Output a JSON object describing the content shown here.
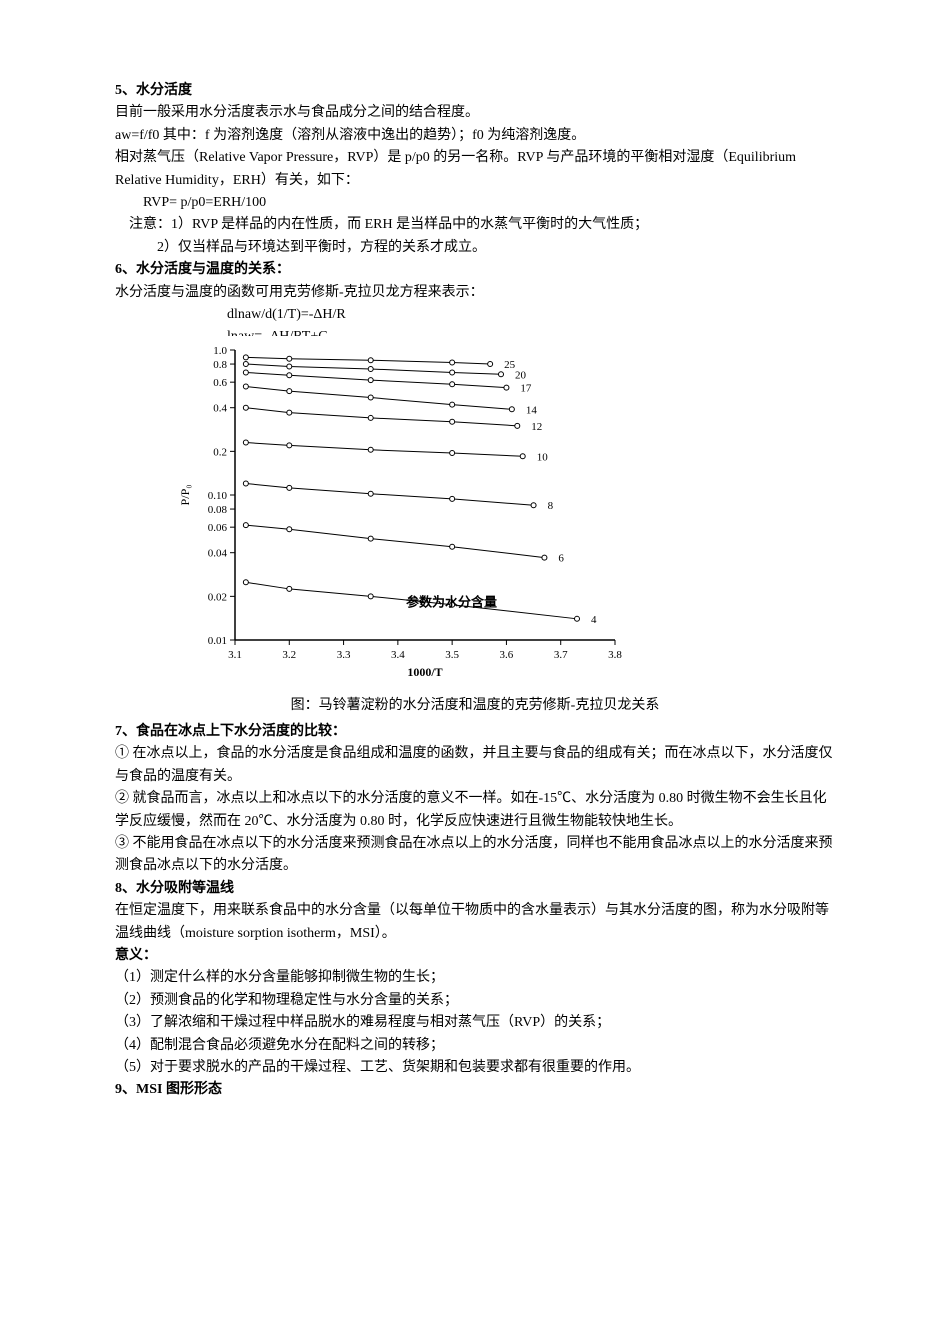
{
  "s5": {
    "heading": "5、水分活度",
    "p1": "目前一般采用水分活度表示水与食品成分之间的结合程度。",
    "p2": "aw=f/f0  其中：f 为溶剂逸度（溶剂从溶液中逸出的趋势）；f0 为纯溶剂逸度。",
    "p3": "相对蒸气压（Relative Vapor Pressure，RVP）是 p/p0 的另一名称。RVP 与产品环境的平衡相对湿度（Equilibrium Relative Humidity，ERH）有关，如下：",
    "p4": "RVP= p/p0=ERH/100",
    "p5": "注意：1）RVP 是样品的内在性质，而 ERH 是当样品中的水蒸气平衡时的大气性质；",
    "p6": "2）仅当样品与环境达到平衡时，方程的关系才成立。"
  },
  "s6": {
    "heading": "6、水分活度与温度的关系：",
    "p1": "水分活度与温度的函数可用克劳修斯-克拉贝龙方程来表示：",
    "eq1": "dlnaw/d(1/T)=-ΔH/R",
    "eq2": "lnaw= -ΔH/RT+C"
  },
  "chart": {
    "type": "line",
    "xlabel": "1000/T",
    "ylabel": "P/P₀",
    "ylabel_rotated": true,
    "annotation": "参数为水分含量",
    "xlim": [
      3.1,
      3.8
    ],
    "xticks": [
      3.1,
      3.2,
      3.3,
      3.4,
      3.5,
      3.6,
      3.7,
      3.8
    ],
    "yscale": "log",
    "yticks": [
      0.01,
      0.02,
      0.04,
      0.06,
      0.08,
      0.1,
      0.2,
      0.4,
      0.6,
      0.8,
      1.0
    ],
    "ytick_labels": [
      "0.01",
      "0.02",
      "0.04",
      "0.06",
      "0.08",
      "0.10",
      "0.2",
      "0.4",
      "0.6",
      "0.8",
      "1.0"
    ],
    "line_color": "#000000",
    "marker": "circle_open",
    "marker_size": 5,
    "background_color": "#ffffff",
    "axis_color": "#000000",
    "label_fontsize": 12,
    "tick_fontsize": 11,
    "series_labels": [
      "25",
      "20",
      "17",
      "14",
      "12",
      "10",
      "8",
      "6",
      "4"
    ],
    "series": [
      {
        "label": "25",
        "points": [
          [
            3.12,
            0.89
          ],
          [
            3.2,
            0.87
          ],
          [
            3.35,
            0.85
          ],
          [
            3.5,
            0.82
          ],
          [
            3.57,
            0.8
          ]
        ]
      },
      {
        "label": "20",
        "points": [
          [
            3.12,
            0.8
          ],
          [
            3.2,
            0.77
          ],
          [
            3.35,
            0.74
          ],
          [
            3.5,
            0.7
          ],
          [
            3.59,
            0.68
          ]
        ]
      },
      {
        "label": "17",
        "points": [
          [
            3.12,
            0.7
          ],
          [
            3.2,
            0.67
          ],
          [
            3.35,
            0.62
          ],
          [
            3.5,
            0.58
          ],
          [
            3.6,
            0.55
          ]
        ]
      },
      {
        "label": "14",
        "points": [
          [
            3.12,
            0.56
          ],
          [
            3.2,
            0.52
          ],
          [
            3.35,
            0.47
          ],
          [
            3.5,
            0.42
          ],
          [
            3.61,
            0.39
          ]
        ]
      },
      {
        "label": "12",
        "points": [
          [
            3.12,
            0.4
          ],
          [
            3.2,
            0.37
          ],
          [
            3.35,
            0.34
          ],
          [
            3.5,
            0.32
          ],
          [
            3.62,
            0.3
          ]
        ]
      },
      {
        "label": "10",
        "points": [
          [
            3.12,
            0.23
          ],
          [
            3.2,
            0.22
          ],
          [
            3.35,
            0.205
          ],
          [
            3.5,
            0.195
          ],
          [
            3.63,
            0.185
          ]
        ]
      },
      {
        "label": "8",
        "points": [
          [
            3.12,
            0.12
          ],
          [
            3.2,
            0.112
          ],
          [
            3.35,
            0.102
          ],
          [
            3.5,
            0.094
          ],
          [
            3.65,
            0.085
          ]
        ]
      },
      {
        "label": "6",
        "points": [
          [
            3.12,
            0.062
          ],
          [
            3.2,
            0.058
          ],
          [
            3.35,
            0.05
          ],
          [
            3.5,
            0.044
          ],
          [
            3.67,
            0.037
          ]
        ]
      },
      {
        "label": "4",
        "points": [
          [
            3.12,
            0.025
          ],
          [
            3.2,
            0.0225
          ],
          [
            3.35,
            0.02
          ],
          [
            3.5,
            0.0175
          ],
          [
            3.73,
            0.014
          ]
        ]
      }
    ],
    "caption": "图：马铃薯淀粉的水分活度和温度的克劳修斯-克拉贝龙关系"
  },
  "s7": {
    "heading": "7、食品在冰点上下水分活度的比较：",
    "p1": "① 在冰点以上，食品的水分活度是食品组成和温度的函数，并且主要与食品的组成有关；而在冰点以下，水分活度仅与食品的温度有关。",
    "p2": "② 就食品而言，冰点以上和冰点以下的水分活度的意义不一样。如在-15℃、水分活度为 0.80 时微生物不会生长且化学反应缓慢，然而在 20℃、水分活度为 0.80 时，化学反应快速进行且微生物能较快地生长。",
    "p3": "③ 不能用食品在冰点以下的水分活度来预测食品在冰点以上的水分活度，同样也不能用食品冰点以上的水分活度来预测食品冰点以下的水分活度。"
  },
  "s8": {
    "heading": "8、水分吸附等温线",
    "p1": "在恒定温度下，用来联系食品中的水分含量（以每单位干物质中的含水量表示）与其水分活度的图，称为水分吸附等温线曲线（moisture sorption isotherm，MSI）。",
    "p2": "意义：",
    "l1": "（1）测定什么样的水分含量能够抑制微生物的生长；",
    "l2": "（2）预测食品的化学和物理稳定性与水分含量的关系；",
    "l3": "（3）了解浓缩和干燥过程中样品脱水的难易程度与相对蒸气压（RVP）的关系；",
    "l4": "（4）配制混合食品必须避免水分在配料之间的转移；",
    "l5": "（5）对于要求脱水的产品的干燥过程、工艺、货架期和包装要求都有很重要的作用。"
  },
  "s9": {
    "heading": "9、MSI 图形形态"
  }
}
